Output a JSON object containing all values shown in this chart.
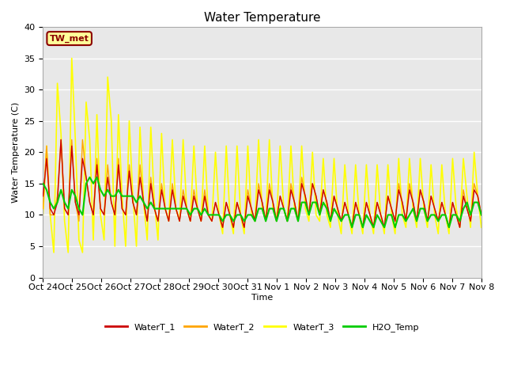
{
  "title": "Water Temperature",
  "ylabel": "Water Temperature (C)",
  "xlabel": "Time",
  "ylim": [
    0,
    40
  ],
  "annotation": "TW_met",
  "annotation_color": "#8B0000",
  "annotation_bg": "#FFFF99",
  "annotation_border": "#8B0000",
  "bg_color": "#E8E8E8",
  "grid_color": "#FFFFFF",
  "WaterT_1_color": "#CC0000",
  "WaterT_2_color": "#FFA500",
  "WaterT_3_color": "#FFFF00",
  "H2O_Temp_color": "#00CC00",
  "lw_thin": 1.0,
  "lw_green": 1.5,
  "lw_yellow": 1.2,
  "xtick_labels": [
    "Oct 24",
    "Oct 25",
    "Oct 26",
    "Oct 27",
    "Oct 28",
    "Oct 29",
    "Oct 30",
    "Oct 31",
    "Nov 1",
    "Nov 2",
    "Nov 3",
    "Nov 4",
    "Nov 5",
    "Nov 6",
    "Nov 7",
    "Nov 8"
  ],
  "title_fontsize": 11,
  "axis_fontsize": 8,
  "legend_fontsize": 8,
  "figsize": [
    6.4,
    4.8
  ],
  "dpi": 100,
  "WaterT_1": [
    13,
    19,
    11,
    10,
    12,
    22,
    11,
    10,
    21,
    12,
    10,
    19,
    16,
    12,
    10,
    18,
    11,
    10,
    16,
    12,
    10,
    18,
    11,
    10,
    17,
    12,
    10,
    16,
    12,
    9,
    15,
    11,
    9,
    14,
    11,
    9,
    14,
    11,
    9,
    13,
    11,
    9,
    13,
    11,
    9,
    13,
    10,
    9,
    12,
    10,
    8,
    12,
    10,
    8,
    12,
    10,
    8,
    13,
    11,
    9,
    14,
    12,
    9,
    14,
    12,
    9,
    13,
    11,
    9,
    14,
    12,
    9,
    15,
    13,
    10,
    15,
    13,
    10,
    14,
    12,
    9,
    13,
    11,
    9,
    12,
    10,
    8,
    12,
    10,
    8,
    12,
    10,
    8,
    12,
    10,
    8,
    13,
    11,
    9,
    14,
    12,
    9,
    14,
    12,
    9,
    14,
    12,
    9,
    13,
    11,
    9,
    12,
    10,
    8,
    12,
    10,
    8,
    13,
    11,
    9,
    14,
    13,
    10
  ],
  "WaterT_2": [
    11,
    21,
    10,
    10,
    13,
    22,
    11,
    10,
    22,
    12,
    9,
    22,
    16,
    12,
    10,
    19,
    11,
    10,
    18,
    12,
    10,
    19,
    11,
    10,
    18,
    12,
    10,
    18,
    12,
    9,
    16,
    11,
    9,
    15,
    11,
    9,
    15,
    11,
    9,
    14,
    11,
    9,
    14,
    11,
    9,
    14,
    10,
    9,
    12,
    10,
    8,
    12,
    10,
    8,
    12,
    10,
    8,
    14,
    11,
    9,
    15,
    12,
    9,
    15,
    12,
    9,
    13,
    11,
    9,
    15,
    12,
    9,
    16,
    13,
    10,
    15,
    13,
    10,
    14,
    12,
    9,
    13,
    11,
    9,
    12,
    10,
    8,
    12,
    10,
    8,
    12,
    10,
    8,
    12,
    10,
    8,
    13,
    11,
    9,
    15,
    12,
    9,
    15,
    12,
    9,
    14,
    12,
    9,
    13,
    11,
    9,
    12,
    10,
    8,
    12,
    10,
    8,
    14,
    11,
    9,
    15,
    13,
    10
  ],
  "WaterT_3": [
    10,
    21,
    10,
    4,
    31,
    23,
    9,
    4,
    35,
    22,
    6,
    4,
    28,
    22,
    6,
    26,
    10,
    6,
    32,
    25,
    5,
    26,
    13,
    5,
    25,
    13,
    5,
    24,
    12,
    6,
    24,
    12,
    6,
    23,
    11,
    9,
    22,
    11,
    9,
    22,
    11,
    9,
    21,
    11,
    9,
    21,
    10,
    9,
    20,
    10,
    7,
    21,
    10,
    7,
    21,
    10,
    7,
    21,
    10,
    9,
    22,
    11,
    9,
    22,
    11,
    9,
    21,
    11,
    9,
    21,
    11,
    9,
    21,
    11,
    9,
    20,
    10,
    9,
    19,
    10,
    8,
    19,
    10,
    7,
    18,
    10,
    7,
    18,
    10,
    7,
    18,
    10,
    7,
    18,
    10,
    7,
    18,
    10,
    7,
    19,
    10,
    8,
    19,
    11,
    8,
    19,
    11,
    8,
    18,
    10,
    7,
    18,
    10,
    7,
    19,
    11,
    8,
    19,
    13,
    8,
    20,
    13,
    8
  ],
  "H2O_Temp": [
    15,
    14,
    12,
    11,
    12,
    14,
    12,
    11,
    14,
    13,
    11,
    10,
    15,
    16,
    15,
    16,
    14,
    13,
    14,
    13,
    13,
    14,
    13,
    13,
    13,
    13,
    12,
    13,
    12,
    11,
    12,
    11,
    11,
    11,
    11,
    11,
    11,
    11,
    11,
    11,
    11,
    10,
    11,
    11,
    10,
    11,
    10,
    10,
    10,
    10,
    9,
    10,
    10,
    9,
    10,
    10,
    9,
    10,
    10,
    9,
    11,
    11,
    9,
    11,
    11,
    9,
    11,
    11,
    9,
    11,
    11,
    9,
    12,
    12,
    10,
    12,
    12,
    10,
    12,
    11,
    9,
    11,
    10,
    9,
    10,
    10,
    8,
    10,
    10,
    8,
    10,
    9,
    8,
    10,
    9,
    8,
    10,
    10,
    8,
    10,
    10,
    9,
    10,
    11,
    9,
    11,
    11,
    9,
    10,
    10,
    9,
    10,
    10,
    8,
    10,
    10,
    9,
    11,
    12,
    10,
    12,
    12,
    10
  ]
}
